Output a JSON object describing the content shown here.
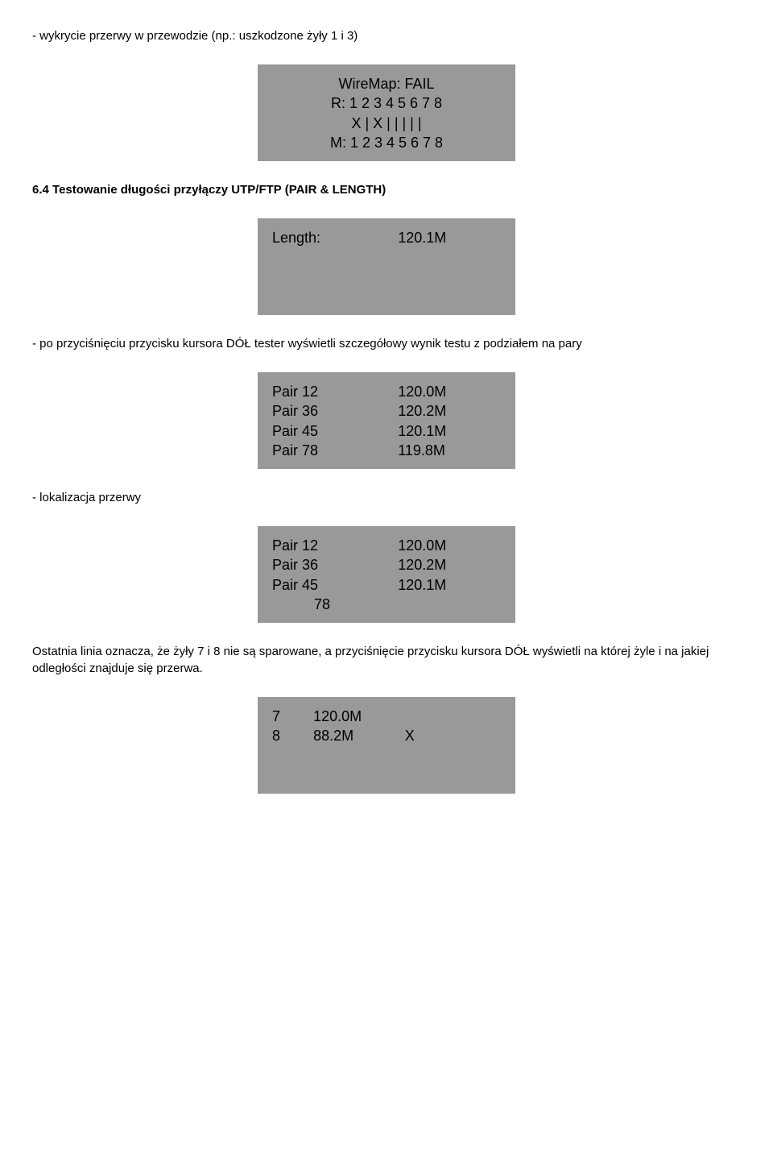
{
  "intro": {
    "line1": "- wykrycie przerwy w przewodzie (np.: uszkodzone żyły 1 i 3)"
  },
  "box1": {
    "l1": "WireMap: FAIL",
    "l2": "R: 1 2 3 4 5 6 7 8",
    "l3": "X  | X |  |  |  |  |",
    "l4": "M: 1 2 3 4 5 6 7 8"
  },
  "section": {
    "title": "6.4 Testowanie długości przyłączy UTP/FTP (PAIR & LENGTH)"
  },
  "box2": {
    "label": "Length:",
    "value": "120.1M"
  },
  "mid": {
    "line": "- po przyciśnięciu przycisku kursora DÓŁ tester wyświetli szczegółowy wynik testu z podziałem na pary"
  },
  "box3": {
    "rows": [
      {
        "p": "Pair 12",
        "v": "120.0M"
      },
      {
        "p": "Pair 36",
        "v": "120.2M"
      },
      {
        "p": "Pair 45",
        "v": "120.1M"
      },
      {
        "p": "Pair 78",
        "v": "119.8M"
      }
    ]
  },
  "loc": {
    "line": "- lokalizacja przerwy"
  },
  "box4": {
    "rows": [
      {
        "p": "Pair 12",
        "v": "120.0M"
      },
      {
        "p": "Pair 36",
        "v": "120.2M"
      },
      {
        "p": "Pair 45",
        "v": "120.1M"
      }
    ],
    "last": "78"
  },
  "outro": {
    "line": "Ostatnia linia oznacza, że żyły 7 i 8 nie są sparowane, a przyciśnięcie przycisku kursora DÓŁ wyświetli na której żyle i na jakiej odległości znajduje się przerwa."
  },
  "box5": {
    "rows": [
      {
        "p": "7",
        "v": "120.0M",
        "x": ""
      },
      {
        "p": "8",
        "v": "88.2M",
        "x": "X"
      }
    ]
  }
}
